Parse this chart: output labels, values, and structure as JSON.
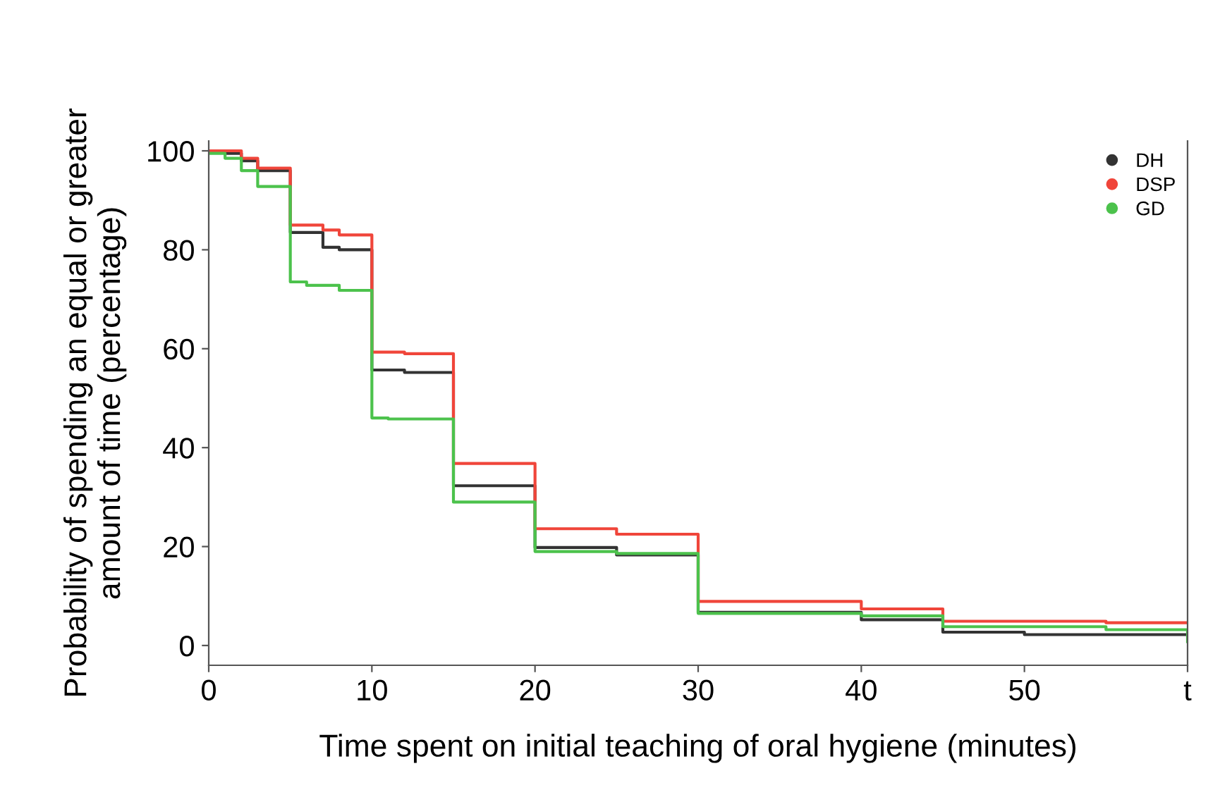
{
  "chart_data": {
    "type": "step",
    "xlabel": "Time spent on initial teaching of oral hygiene (minutes)",
    "ylabel": "Probability of spending an equal or greater\namount of time (percentage)",
    "xlim": [
      0,
      60
    ],
    "ylim": [
      -4,
      102
    ],
    "xticks": [
      0,
      10,
      20,
      30,
      40,
      50,
      {
        "value": 60,
        "label": "t"
      }
    ],
    "yticks": [
      0,
      20,
      40,
      60,
      80,
      100
    ],
    "grid": false,
    "legend": "top right",
    "series": [
      {
        "name": "DH",
        "color": "#333333",
        "x": [
          0,
          1,
          2,
          3,
          5,
          7,
          8,
          10,
          12,
          15,
          20,
          25,
          30,
          40,
          45,
          50,
          60
        ],
        "values": [
          100,
          99.5,
          98,
          96,
          83.5,
          80.5,
          80,
          55.7,
          55.2,
          32.3,
          19.8,
          18.3,
          6.7,
          5.2,
          2.7,
          2.2,
          2.2
        ]
      },
      {
        "name": "DSP",
        "color": "#f0453a",
        "x": [
          0,
          2,
          3,
          5,
          7,
          8,
          10,
          12,
          15,
          20,
          25,
          30,
          40,
          45,
          55,
          60
        ],
        "values": [
          100,
          98.5,
          96.5,
          85,
          84,
          83,
          59.3,
          59,
          36.8,
          23.6,
          22.5,
          8.9,
          7.4,
          4.9,
          4.6,
          4.6
        ]
      },
      {
        "name": "GD",
        "color": "#4cc24c",
        "x": [
          0,
          1,
          2,
          3,
          5,
          6,
          8,
          10,
          11,
          15,
          20,
          25,
          30,
          40,
          45,
          55,
          60
        ],
        "values": [
          99.5,
          98.5,
          96,
          92.8,
          73.5,
          72.8,
          71.8,
          46,
          45.8,
          29,
          19,
          18.6,
          6.5,
          6,
          3.8,
          3.2,
          0.8
        ]
      }
    ]
  }
}
